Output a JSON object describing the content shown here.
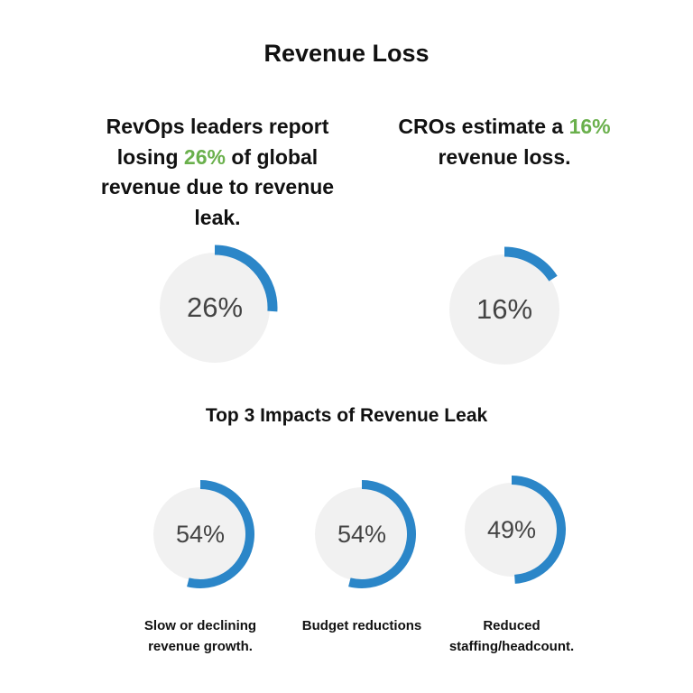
{
  "title": "Revenue Loss",
  "section_title": "Top 3 Impacts of Revenue Leak",
  "chart_data": [
    {
      "type": "donut",
      "values": [
        26
      ],
      "value_labels": [
        "26%"
      ],
      "range": [
        0,
        100
      ],
      "color": "#2b86c8",
      "track_color": "#f1f1f1",
      "headline": {
        "before": "RevOps leaders report losing ",
        "highlight": "26%",
        "after": " of global revenue due to revenue leak."
      }
    },
    {
      "type": "donut",
      "values": [
        16
      ],
      "value_labels": [
        "16%"
      ],
      "range": [
        0,
        100
      ],
      "color": "#2b86c8",
      "track_color": "#f1f1f1",
      "headline": {
        "before": "CROs estimate a ",
        "highlight": "16%",
        "after": " revenue loss."
      }
    },
    {
      "type": "donut",
      "values": [
        54
      ],
      "value_labels": [
        "54%"
      ],
      "range": [
        0,
        100
      ],
      "color": "#2b86c8",
      "track_color": "#f1f1f1",
      "caption": "Slow or declining revenue growth."
    },
    {
      "type": "donut",
      "values": [
        54
      ],
      "value_labels": [
        "54%"
      ],
      "range": [
        0,
        100
      ],
      "color": "#2b86c8",
      "track_color": "#f1f1f1",
      "caption": "Budget reductions"
    },
    {
      "type": "donut",
      "values": [
        49
      ],
      "value_labels": [
        "49%"
      ],
      "range": [
        0,
        100
      ],
      "color": "#2b86c8",
      "track_color": "#f1f1f1",
      "caption": "Reduced staffing/headcount."
    }
  ]
}
